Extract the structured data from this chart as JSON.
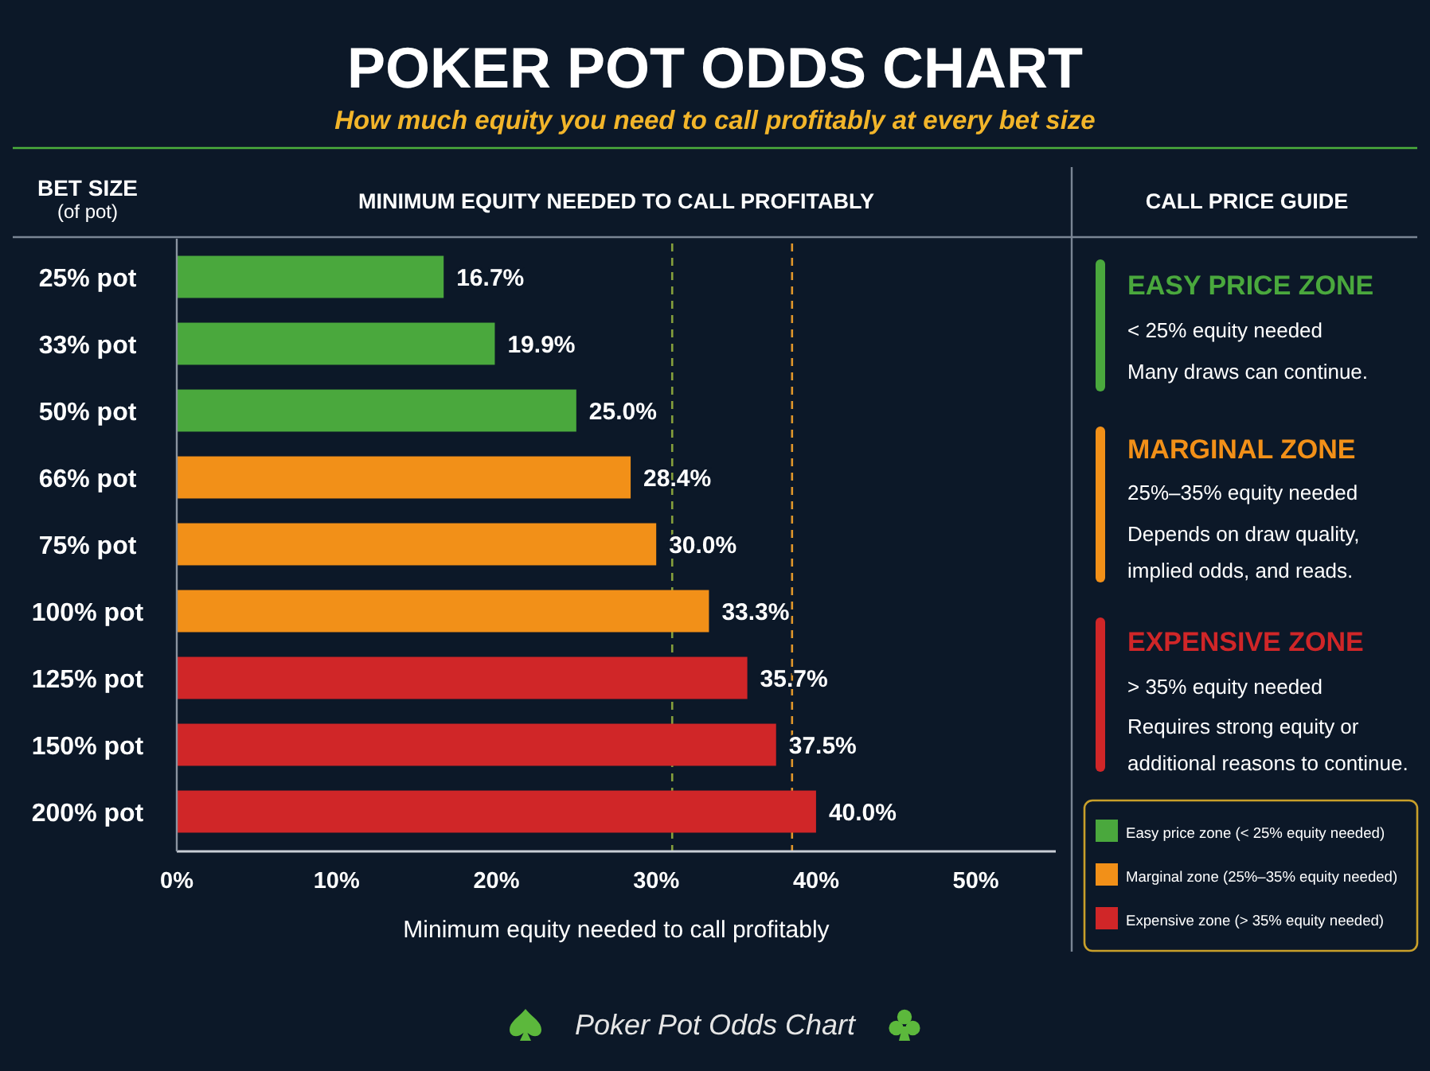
{
  "chart_data": {
    "type": "bar",
    "orientation": "horizontal",
    "title": "POKER POT ODDS CHART",
    "subtitle": "How much equity you need to call profitably at every bet size",
    "ylabel": "BET SIZE\n(of pot)",
    "xlabel": "Minimum equity needed to call profitably",
    "categories": [
      "25% pot",
      "33% pot",
      "50% pot",
      "66% pot",
      "75% pot",
      "100% pot",
      "125% pot",
      "150% pot",
      "200% pot"
    ],
    "series": [
      {
        "name": "Easy price zone (< 25% equity needed)",
        "color": "#4aa83d",
        "values": [
          16.7,
          19.9,
          25.0,
          null,
          null,
          null,
          null,
          null,
          null
        ],
        "value_labels": [
          "16.7%",
          "19.9%",
          "25.0%",
          null,
          null,
          null,
          null,
          null,
          null
        ]
      },
      {
        "name": "Marginal zone (25%–35% equity needed)",
        "color": "#f29018",
        "values": [
          null,
          null,
          null,
          28.4,
          30.0,
          33.3,
          null,
          null,
          null
        ],
        "value_labels": [
          null,
          null,
          null,
          "28.4%",
          "30.0%",
          "33.3%",
          null,
          null,
          null
        ]
      },
      {
        "name": "Expensive zone (> 35% equity needed)",
        "color": "#d02628",
        "values": [
          null,
          null,
          null,
          null,
          null,
          null,
          35.7,
          37.5,
          40.0
        ],
        "value_labels": [
          null,
          null,
          null,
          null,
          null,
          null,
          "35.7%",
          "37.5%",
          "40.0%"
        ]
      }
    ],
    "xlim": [
      0,
      55
    ],
    "xticks": [
      {
        "value": 0,
        "label": "0%"
      },
      {
        "value": 10,
        "label": "10%"
      },
      {
        "value": 20,
        "label": "20%"
      },
      {
        "value": 30,
        "label": "30%"
      },
      {
        "value": 40,
        "label": "40%"
      },
      {
        "value": 50,
        "label": "50%"
      }
    ],
    "ref_lines": [
      {
        "axis": "x",
        "value": 31,
        "color": "#86a03c",
        "line_style": "dashed"
      },
      {
        "axis": "x",
        "value": 38.5,
        "color": "#e0962a",
        "line_style": "dashed"
      }
    ],
    "legend": "bottom right",
    "annotations": [
      "MINIMUM EQUITY NEEDED TO CALL PROFITABLY",
      "CALL PRICE GUIDE",
      "EASY PRICE ZONE",
      "< 25% equity needed",
      "Many draws can continue.",
      "MARGINAL ZONE",
      "25%–35% equity needed",
      "Depends on draw quality, implied odds, and reads.",
      "EXPENSIVE ZONE",
      "> 35% equity needed",
      "Requires strong equity or additional reasons to continue.",
      "Poker Pot Odds Chart"
    ]
  }
}
